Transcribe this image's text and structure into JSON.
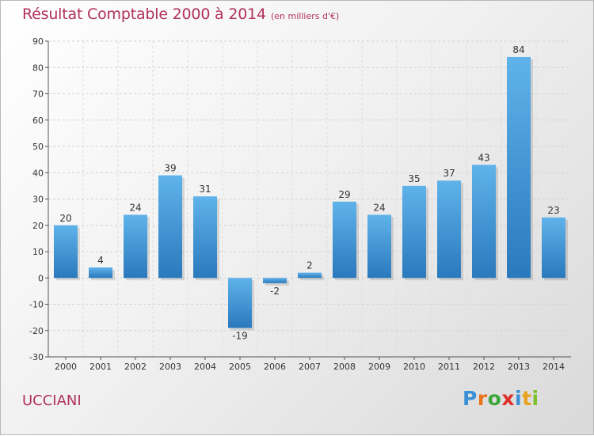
{
  "header": {
    "title": "Résultat Comptable 2000 à 2014",
    "subtitle": "(en milliers d'€)"
  },
  "footer": {
    "commune": "UCCIANI",
    "logo_letters": [
      {
        "ch": "P",
        "color": "#3a8fd6"
      },
      {
        "ch": "r",
        "color": "#e8741c"
      },
      {
        "ch": "o",
        "color": "#3aa63a"
      },
      {
        "ch": "x",
        "color": "#e0312a"
      },
      {
        "ch": "i",
        "color": "#3a8fd6"
      },
      {
        "ch": "t",
        "color": "#e8a21c"
      },
      {
        "ch": "i",
        "color": "#7bbf2a"
      }
    ]
  },
  "colors": {
    "bar_light": "#5fb3ea",
    "bar_dark": "#2a79bd",
    "title": "#b0305e"
  },
  "chart_data": {
    "type": "bar",
    "title": "Résultat Comptable 2000 à 2014",
    "subtitle": "(en milliers d'€)",
    "categories": [
      "2000",
      "2001",
      "2002",
      "2003",
      "2004",
      "2005",
      "2006",
      "2007",
      "2008",
      "2009",
      "2010",
      "2011",
      "2012",
      "2013",
      "2014"
    ],
    "values": [
      20,
      4,
      24,
      39,
      31,
      -19,
      -2,
      2,
      29,
      24,
      35,
      37,
      43,
      84,
      23
    ],
    "data_labels": [
      "20",
      "4",
      "24",
      "39",
      "31",
      "-19",
      "-2",
      "2",
      "29",
      "24",
      "35",
      "37",
      "43",
      "84",
      "23"
    ],
    "ylim": [
      -30,
      90
    ],
    "yticks": [
      -30,
      -20,
      -10,
      0,
      10,
      20,
      30,
      40,
      50,
      60,
      70,
      80,
      90
    ],
    "grid": true,
    "xlabel": "",
    "ylabel": ""
  }
}
